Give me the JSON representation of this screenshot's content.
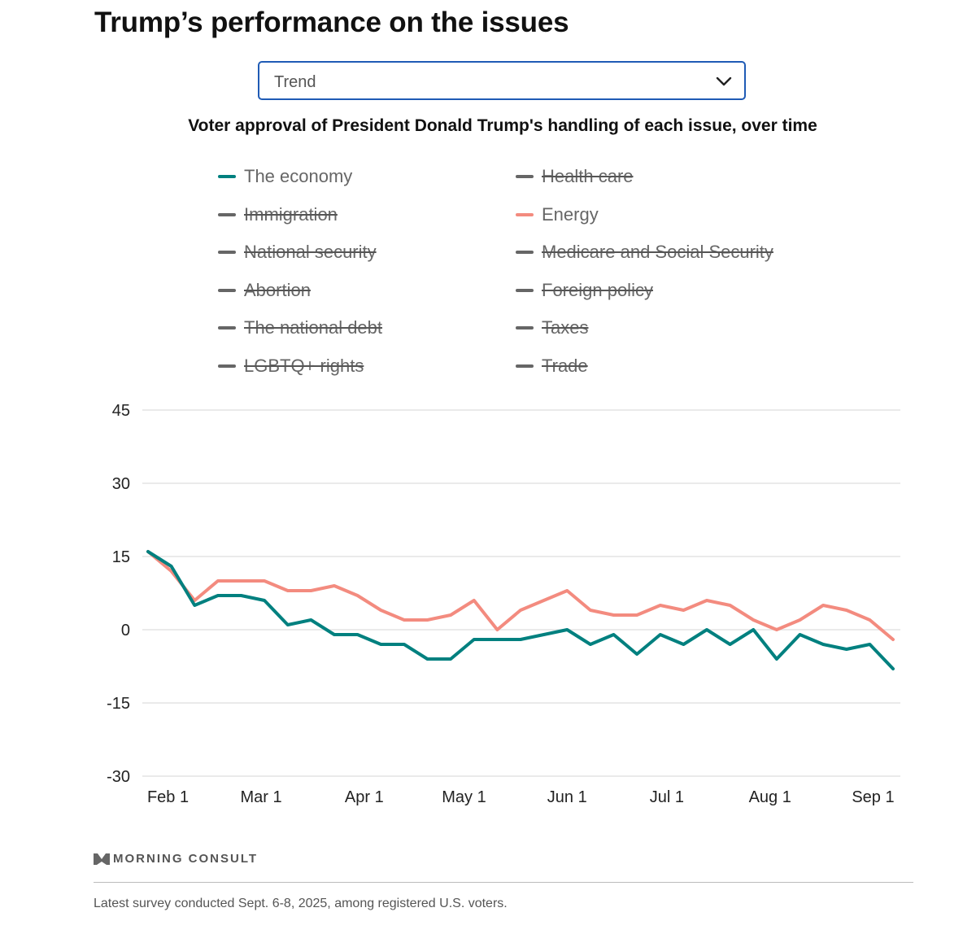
{
  "page": {
    "title": "Trump’s performance on the issues"
  },
  "dropdown": {
    "selected": "Trend"
  },
  "footer": {
    "logo_text": "MORNING CONSULT",
    "note": "Latest survey conducted Sept. 6-8, 2025, among registered U.S. voters."
  },
  "colors": {
    "economy": "#00807f",
    "energy": "#f38b7f",
    "disabled": "#666666",
    "grid": "#e3e3e3"
  },
  "chart_data": {
    "type": "line",
    "title": "Voter approval of President Donald Trump's handling of each issue, over time",
    "xlabel": "",
    "ylabel": "",
    "ylim": [
      -30,
      45
    ],
    "yticks": [
      45,
      30,
      15,
      0,
      -15,
      -30
    ],
    "grid": true,
    "legend_position": "top",
    "legend": [
      {
        "name": "The economy",
        "active": true
      },
      {
        "name": "Health care",
        "active": false
      },
      {
        "name": "Immigration",
        "active": false
      },
      {
        "name": "Energy",
        "active": true
      },
      {
        "name": "National security",
        "active": false
      },
      {
        "name": "Medicare and Social Security",
        "active": false
      },
      {
        "name": "Abortion",
        "active": false
      },
      {
        "name": "Foreign policy",
        "active": false
      },
      {
        "name": "The national debt",
        "active": false
      },
      {
        "name": "Taxes",
        "active": false
      },
      {
        "name": "LGBTQ+ rights",
        "active": false
      },
      {
        "name": "Trade",
        "active": false
      }
    ],
    "x_tick_labels": [
      "Feb 1",
      "Mar 1",
      "Apr 1",
      "May 1",
      "Jun 1",
      "Jul 1",
      "Aug 1",
      "Sep 1"
    ],
    "x_tick_dates": [
      "2025-02-01",
      "2025-03-01",
      "2025-04-01",
      "2025-05-01",
      "2025-06-01",
      "2025-07-01",
      "2025-08-01",
      "2025-09-01"
    ],
    "x": [
      "2025-01-26",
      "2025-02-02",
      "2025-02-09",
      "2025-02-16",
      "2025-02-23",
      "2025-03-02",
      "2025-03-09",
      "2025-03-16",
      "2025-03-23",
      "2025-03-30",
      "2025-04-06",
      "2025-04-13",
      "2025-04-20",
      "2025-04-27",
      "2025-05-04",
      "2025-05-11",
      "2025-05-18",
      "2025-05-25",
      "2025-06-01",
      "2025-06-08",
      "2025-06-15",
      "2025-06-22",
      "2025-06-29",
      "2025-07-06",
      "2025-07-13",
      "2025-07-20",
      "2025-07-27",
      "2025-08-03",
      "2025-08-10",
      "2025-08-17",
      "2025-08-24",
      "2025-08-31",
      "2025-09-07"
    ],
    "series": [
      {
        "name": "The economy",
        "color": "#00807f",
        "values": [
          16,
          13,
          5,
          7,
          7,
          6,
          1,
          2,
          -1,
          -1,
          -3,
          -3,
          -6,
          -6,
          -2,
          -2,
          -2,
          -1,
          0,
          -3,
          -1,
          -5,
          -1,
          -3,
          0,
          -3,
          0,
          -6,
          -1,
          -3,
          -4,
          -3,
          -8
        ]
      },
      {
        "name": "Energy",
        "color": "#f38b7f",
        "values": [
          16,
          12,
          6,
          10,
          10,
          10,
          8,
          8,
          9,
          7,
          4,
          2,
          2,
          3,
          6,
          0,
          4,
          6,
          8,
          4,
          3,
          3,
          5,
          4,
          6,
          5,
          2,
          0,
          2,
          5,
          4,
          2,
          -2
        ]
      }
    ]
  }
}
